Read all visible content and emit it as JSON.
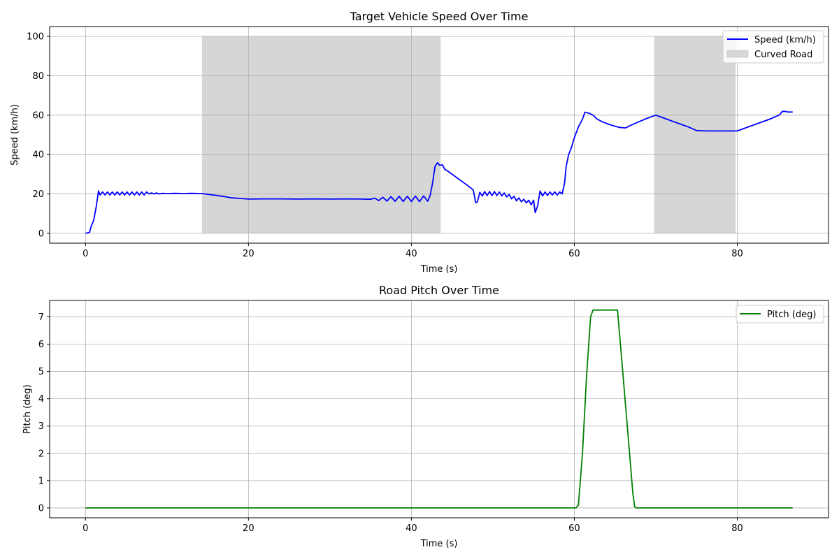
{
  "chart_data": [
    {
      "type": "line",
      "title": "Target Vehicle Speed Over Time",
      "xlabel": "Time (s)",
      "ylabel": "Speed (km/h)",
      "xlim": [
        -4.4,
        91.2
      ],
      "ylim": [
        -5,
        105
      ],
      "xticks": [
        0,
        20,
        40,
        60,
        80
      ],
      "yticks": [
        0,
        20,
        40,
        60,
        80,
        100
      ],
      "grid": true,
      "legend_position": "top-right",
      "regions": [
        {
          "name": "Curved Road",
          "x_start": 14.3,
          "x_end": 43.6,
          "y_start": 0,
          "y_end": 100,
          "color": "#d6d6d6"
        },
        {
          "name": "Curved Road",
          "x_start": 69.8,
          "x_end": 79.8,
          "y_start": 0,
          "y_end": 100,
          "color": "#d6d6d6"
        }
      ],
      "series": [
        {
          "name": "Speed (km/h)",
          "color": "#0000ff",
          "x": [
            0,
            0.5,
            0.7,
            1.0,
            1.3,
            1.6,
            1.8,
            2.1,
            2.4,
            2.7,
            3.0,
            3.3,
            3.6,
            3.9,
            4.2,
            4.5,
            4.8,
            5.1,
            5.4,
            5.7,
            6.0,
            6.3,
            6.6,
            6.9,
            7.2,
            7.5,
            7.8,
            8.1,
            8.4,
            8.7,
            9.0,
            9.5,
            10.0,
            11.0,
            12.0,
            13.0,
            14.3,
            15.0,
            16.0,
            17.0,
            18.0,
            19.0,
            20.0,
            22.0,
            24.0,
            26.0,
            28.0,
            30.0,
            32.0,
            34.0,
            35.0,
            35.5,
            36.0,
            36.5,
            37.0,
            37.5,
            38.0,
            38.5,
            39.0,
            39.5,
            40.0,
            40.5,
            41.0,
            41.5,
            42.0,
            42.3,
            42.6,
            42.9,
            43.2,
            43.5,
            43.8,
            44.1,
            44.5,
            45.0,
            46.0,
            47.0,
            47.6,
            47.9,
            48.1,
            48.4,
            48.7,
            49.0,
            49.3,
            49.6,
            49.9,
            50.2,
            50.5,
            50.8,
            51.1,
            51.4,
            51.7,
            52.0,
            52.3,
            52.6,
            52.9,
            53.2,
            53.5,
            53.8,
            54.1,
            54.4,
            54.7,
            55.0,
            55.2,
            55.5,
            55.8,
            56.1,
            56.4,
            56.7,
            57.0,
            57.3,
            57.6,
            57.9,
            58.2,
            58.5,
            58.8,
            59.0,
            59.3,
            59.6,
            60.0,
            60.5,
            61.0,
            61.3,
            61.8,
            62.3,
            62.8,
            63.5,
            64.5,
            65.5,
            66.3,
            67.0,
            68.0,
            69.0,
            70.0,
            71.0,
            72.0,
            73.0,
            74.0,
            75.0,
            76.0,
            78.0,
            80.0,
            82.0,
            84.0,
            85.2,
            85.5,
            85.8,
            86.2,
            86.8
          ],
          "values": [
            0,
            0.5,
            3.5,
            6.5,
            13,
            21.5,
            19.5,
            21,
            19.5,
            21,
            19.5,
            21,
            19.5,
            21,
            19.5,
            21,
            19.5,
            21,
            19.5,
            21,
            19.5,
            21,
            19.5,
            21,
            19.5,
            21,
            20,
            20.5,
            20,
            20.5,
            20,
            20.3,
            20.2,
            20.3,
            20.2,
            20.3,
            20.2,
            19.8,
            19.3,
            18.7,
            18.0,
            17.7,
            17.4,
            17.5,
            17.5,
            17.4,
            17.5,
            17.4,
            17.5,
            17.4,
            17.3,
            17.9,
            16.6,
            18.3,
            16.4,
            18.6,
            16.3,
            18.8,
            16.2,
            18.8,
            16.2,
            18.9,
            16.1,
            19.0,
            16.3,
            19.2,
            25.5,
            34.0,
            35.8,
            34.5,
            34.8,
            32.5,
            31.5,
            30.0,
            27.0,
            24.0,
            22.0,
            15.5,
            16.0,
            20.8,
            19.0,
            21.2,
            19.2,
            21.2,
            19.2,
            21.2,
            19.2,
            21.0,
            19.0,
            20.5,
            18.5,
            19.8,
            17.5,
            18.8,
            16.5,
            18.0,
            16.0,
            17.3,
            15.5,
            16.8,
            14.5,
            16.8,
            10.5,
            14.0,
            21.5,
            19.0,
            21.0,
            19.2,
            21.0,
            19.5,
            21.0,
            19.5,
            21.0,
            20.0,
            25.5,
            34.0,
            40.0,
            43.0,
            48.5,
            54.0,
            58.0,
            61.5,
            61.0,
            60.0,
            58.0,
            56.5,
            55.0,
            53.8,
            53.5,
            55.0,
            56.8,
            58.5,
            60.0,
            58.5,
            57.0,
            55.5,
            54.0,
            52.2,
            52.0,
            52.0,
            52.0,
            55.0,
            58.0,
            60.2,
            61.8,
            62.0,
            61.6,
            61.6
          ]
        }
      ]
    },
    {
      "type": "line",
      "title": "Road Pitch Over Time",
      "xlabel": "Time (s)",
      "ylabel": "Pitch (deg)",
      "xlim": [
        -4.4,
        91.2
      ],
      "ylim": [
        -0.36,
        7.6
      ],
      "xticks": [
        0,
        20,
        40,
        60,
        80
      ],
      "yticks": [
        0,
        1,
        2,
        3,
        4,
        5,
        6,
        7
      ],
      "grid": true,
      "legend_position": "top-right",
      "series": [
        {
          "name": "Pitch (deg)",
          "color": "#008000",
          "x": [
            0,
            10,
            20,
            30,
            40,
            50,
            60.2,
            60.5,
            61.0,
            61.5,
            62.0,
            62.3,
            63.0,
            64.0,
            65.0,
            65.3,
            65.8,
            66.5,
            67.2,
            67.4,
            67.6,
            70,
            80,
            86.8
          ],
          "values": [
            0,
            0,
            0,
            0,
            0,
            0,
            0,
            0.1,
            2.0,
            4.8,
            7.0,
            7.25,
            7.25,
            7.25,
            7.25,
            7.25,
            5.5,
            3.0,
            0.5,
            0.05,
            0,
            0,
            0,
            0
          ]
        }
      ]
    }
  ]
}
